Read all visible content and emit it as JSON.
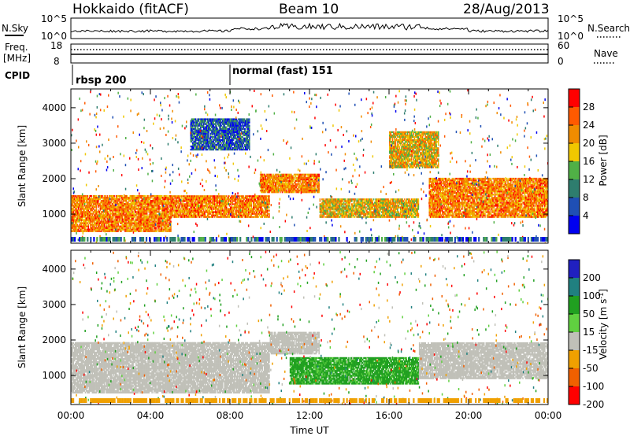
{
  "header": {
    "station": "Hokkaido (fitACF)",
    "beam": "Beam 10",
    "date": "28/Aug/2013"
  },
  "noise_panel": {
    "left_label": "N.Sky",
    "right_label": "N.Search",
    "left_ticks": [
      "10^5",
      "10^0"
    ],
    "right_ticks": [
      "10^5",
      "10^0"
    ]
  },
  "freq_panel": {
    "left_label_1": "Freq.",
    "left_label_2": "[MHz]",
    "right_label": "Nave",
    "left_ticks": [
      "18",
      "8"
    ],
    "right_ticks": [
      "60",
      "0"
    ]
  },
  "cpid_panel": {
    "label": "CPID",
    "modes": [
      {
        "name": "rbsp 200",
        "start": "00:00"
      },
      {
        "name": "normal (fast) 151",
        "start": "08:00"
      }
    ]
  },
  "chart_data": [
    {
      "type": "heatmap",
      "quantity": "Power",
      "ylabel": "Slant Range [km]",
      "xlabel": "Time UT",
      "colorbar_label": "Power [dB]",
      "colorbar_ticks": [
        "4",
        "8",
        "12",
        "16",
        "20",
        "24",
        "28"
      ],
      "colorbar_colors": [
        "#0000f0",
        "#1f4fb4",
        "#2e7d6e",
        "#50b046",
        "#f0c800",
        "#f08c00",
        "#ff5a00",
        "#ff0000"
      ],
      "ylim": [
        180,
        4530
      ],
      "yticks": [
        "1000",
        "2000",
        "3000",
        "4000"
      ],
      "xticks": [
        "00:00",
        "04:00",
        "08:00",
        "12:00",
        "16:00",
        "20:00",
        "00:00"
      ],
      "features": [
        {
          "t": [
            0,
            5
          ],
          "range": [
            500,
            1500
          ],
          "level": 28
        },
        {
          "t": [
            5,
            10
          ],
          "range": [
            900,
            1500
          ],
          "level": 28
        },
        {
          "t": [
            9.5,
            12.5
          ],
          "range": [
            1600,
            2100
          ],
          "level": 28
        },
        {
          "t": [
            12.5,
            17.5
          ],
          "range": [
            900,
            1400
          ],
          "level": 24
        },
        {
          "t": [
            18,
            24
          ],
          "range": [
            900,
            2000
          ],
          "level": 28
        },
        {
          "t": [
            6,
            9
          ],
          "range": [
            2800,
            3700
          ],
          "level": 12
        },
        {
          "t": [
            16,
            18.5
          ],
          "range": [
            2300,
            3300
          ],
          "level": 24
        }
      ]
    },
    {
      "type": "heatmap",
      "quantity": "Velocity",
      "ylabel": "Slant Range [km]",
      "xlabel": "Time UT",
      "colorbar_label": "Velocity [m s^-1]",
      "colorbar_ticks": [
        "200",
        "100",
        "50",
        "15",
        "-15",
        "-50",
        "-100",
        "-200"
      ],
      "colorbar_colors": [
        "#2020c0",
        "#208080",
        "#20a020",
        "#60d040",
        "#c0c0b8",
        "#f0a000",
        "#f06000",
        "#ff0000"
      ],
      "ylim": [
        180,
        4530
      ],
      "yticks": [
        "1000",
        "2000",
        "3000",
        "4000"
      ],
      "xticks": [
        "00:00",
        "04:00",
        "08:00",
        "12:00",
        "16:00",
        "20:00",
        "00:00"
      ],
      "features": [
        {
          "t": [
            0,
            10
          ],
          "range": [
            500,
            1900
          ],
          "value": 0
        },
        {
          "t": [
            11,
            17.5
          ],
          "range": [
            750,
            1500
          ],
          "value": 60
        },
        {
          "t": [
            17.5,
            24
          ],
          "range": [
            900,
            1900
          ],
          "value": 0
        },
        {
          "t": [
            10,
            12.5
          ],
          "range": [
            1600,
            2200
          ],
          "value": 0
        }
      ]
    }
  ]
}
